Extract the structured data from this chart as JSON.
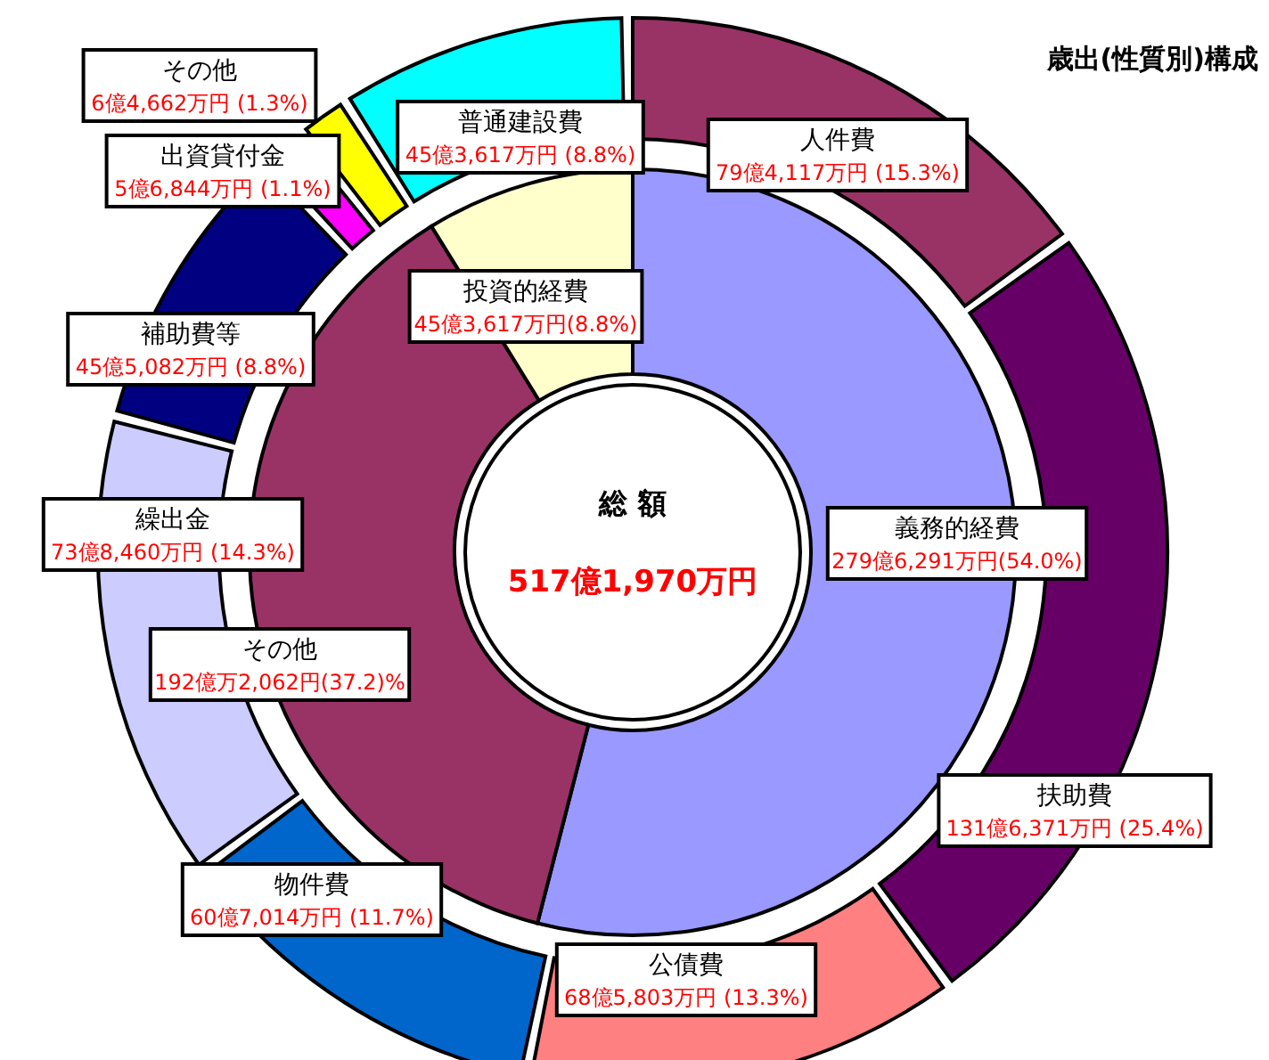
{
  "chart_data": [
    {
      "type": "donut",
      "title": "歳出(性質別)構成",
      "categories": [
        "人件費",
        "扶助費",
        "公債費",
        "物件費",
        "繰出金",
        "補助費等",
        "出資貸付金",
        "その他",
        "普通建設費"
      ],
      "values": [
        15.3,
        25.4,
        13.3,
        11.7,
        14.3,
        8.8,
        1.1,
        1.3,
        8.8
      ],
      "colors": [
        "#993366",
        "#660066",
        "#ff8080",
        "#0066cc",
        "#ccccff",
        "#000080",
        "#ff00ff",
        "#ffff00",
        "#00ffff"
      ],
      "value_labels": [
        "79億4,117万円 (15.3%)",
        "131億6,371万円 (25.4%)",
        "68億5,803万円 (13.3%)",
        "60億7,014万円 (11.7%)",
        "73億8,460万円 (14.3%)",
        "45億5,082万円 (8.8%)",
        "5億6,844万円 (1.1%)",
        "6億4,662万円 (1.3%)",
        "45億3,617万円 (8.8%)"
      ]
    },
    {
      "type": "donut",
      "annotations": [
        "総 額",
        "517億1,970万円"
      ],
      "categories": [
        "義務的経費",
        "その他",
        "投資的経費"
      ],
      "values": [
        54.0,
        37.2,
        8.8
      ],
      "colors": [
        "#9999ff",
        "#993366",
        "#ffffcc"
      ],
      "value_labels": [
        "279億6,291万円(54.0%)",
        "192億万2,062円(37.2)%",
        "45億3,617万円(8.8%)"
      ]
    }
  ]
}
